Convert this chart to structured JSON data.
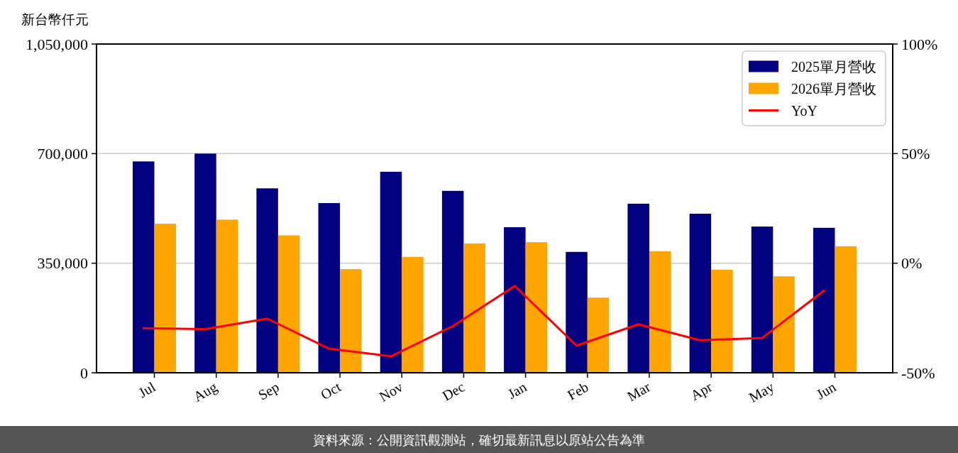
{
  "chart_data": {
    "type": "bar",
    "ylabel": "新台幣仟元",
    "categories": [
      "Jul",
      "Aug",
      "Sep",
      "Oct",
      "Nov",
      "Dec",
      "Jan",
      "Feb",
      "Mar",
      "Apr",
      "May",
      "Jun"
    ],
    "series": [
      {
        "name": "2025單月營收",
        "color": "#000080",
        "values": [
          675000,
          700000,
          589000,
          542000,
          642000,
          581000,
          465000,
          386000,
          540000,
          508000,
          467000,
          463000
        ]
      },
      {
        "name": "2026單月營收",
        "color": "#ffa500",
        "values": [
          476000,
          489000,
          439000,
          331000,
          370000,
          413000,
          417000,
          240000,
          388000,
          329000,
          308000,
          404000
        ]
      },
      {
        "name": "YoY",
        "type": "line",
        "axis": "y2",
        "color": "#ff0000",
        "values": [
          -29.7,
          -30.1,
          -25.3,
          -39.0,
          -42.5,
          -28.7,
          -10.4,
          -37.6,
          -27.9,
          -35.2,
          -34.1,
          -12.5
        ]
      }
    ],
    "ylim": [
      0,
      1050000
    ],
    "yticks": [
      {
        "value": 0,
        "label": "0"
      },
      {
        "value": 350000,
        "label": "350,000"
      },
      {
        "value": 700000,
        "label": "700,000"
      },
      {
        "value": 1050000,
        "label": "1,050,000"
      }
    ],
    "y2lim": [
      -50,
      100
    ],
    "y2ticks": [
      {
        "value": -50,
        "label": "-50%"
      },
      {
        "value": 0,
        "label": "0%"
      },
      {
        "value": 50,
        "label": "50%"
      },
      {
        "value": 100,
        "label": "100%"
      }
    ],
    "grid": "y",
    "legend": "top right",
    "annotations": [
      "資料來源：公開資訊觀測站，確切最新訊息以原站公告為準"
    ]
  }
}
